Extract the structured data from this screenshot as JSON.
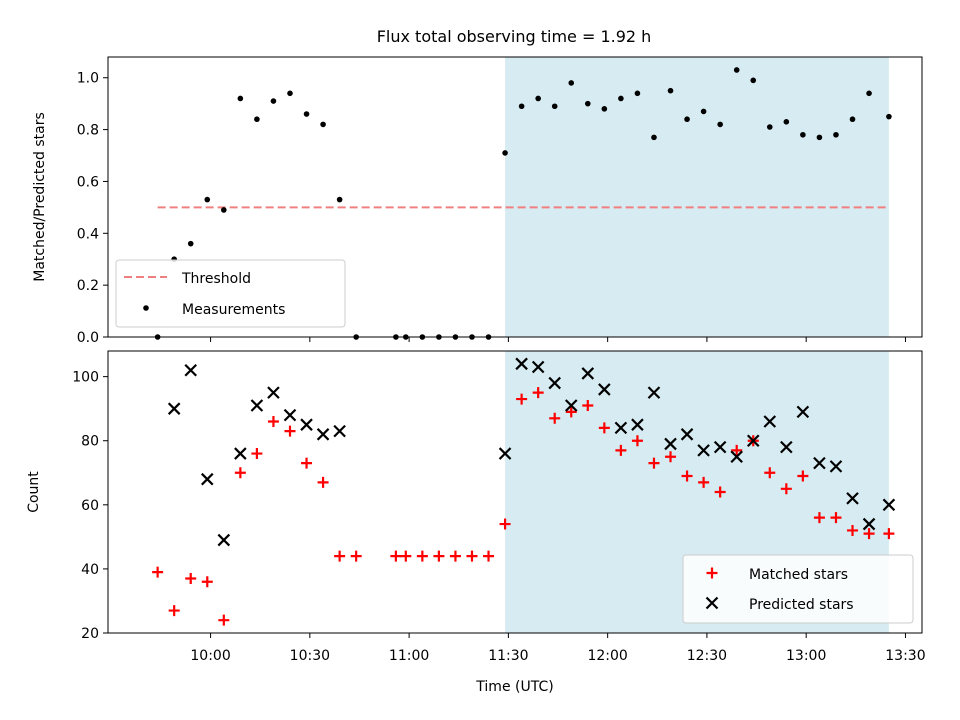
{
  "title": "Flux total observing time = 1.92 h",
  "colors": {
    "shade": "#add8e6",
    "threshold": "#f08080",
    "matched": "#ff0000",
    "predicted": "#000000",
    "points": "#000000"
  },
  "chart_data": [
    {
      "type": "scatter",
      "title": "Flux total observing time = 1.92 h",
      "xlabel": "",
      "ylabel": "Matched/Predicted stars",
      "xlim": [
        "09:29",
        "13:35"
      ],
      "ylim": [
        0.0,
        1.08
      ],
      "yticks": [
        "0.0",
        "0.2",
        "0.4",
        "0.6",
        "0.8",
        "1.0"
      ],
      "shaded_region": {
        "x": [
          "11:29",
          "13:25"
        ]
      },
      "legend": {
        "placement": "lower-left",
        "entries": [
          "Threshold",
          "Measurements"
        ]
      },
      "threshold": {
        "name": "Threshold",
        "x": [
          "09:44",
          "13:25"
        ],
        "y": 0.5
      },
      "series": [
        {
          "name": "Measurements",
          "x": [
            "09:44",
            "09:49",
            "09:54",
            "09:59",
            "10:04",
            "10:09",
            "10:14",
            "10:19",
            "10:24",
            "10:29",
            "10:34",
            "10:39",
            "10:44",
            "10:56",
            "10:59",
            "11:04",
            "11:09",
            "11:14",
            "11:19",
            "11:24",
            "11:29",
            "11:34",
            "11:39",
            "11:44",
            "11:49",
            "11:54",
            "11:59",
            "12:04",
            "12:09",
            "12:14",
            "12:19",
            "12:24",
            "12:29",
            "12:34",
            "12:39",
            "12:44",
            "12:49",
            "12:54",
            "12:59",
            "13:04",
            "13:09",
            "13:14",
            "13:19",
            "13:25"
          ],
          "y": [
            0.0,
            0.3,
            0.36,
            0.53,
            0.49,
            0.92,
            0.84,
            0.91,
            0.94,
            0.86,
            0.82,
            0.53,
            0.0,
            0.0,
            0.0,
            0.0,
            0.0,
            0.0,
            0.0,
            0.0,
            0.71,
            0.89,
            0.92,
            0.89,
            0.98,
            0.9,
            0.88,
            0.92,
            0.94,
            0.77,
            0.95,
            0.84,
            0.87,
            0.82,
            1.03,
            0.99,
            0.81,
            0.83,
            0.78,
            0.77,
            0.78,
            0.84,
            0.94,
            0.85
          ]
        }
      ]
    },
    {
      "type": "scatter",
      "xlabel": "Time (UTC)",
      "ylabel": "Count",
      "xlim": [
        "09:29",
        "13:35"
      ],
      "ylim": [
        20,
        108
      ],
      "xticks": [
        "10:00",
        "10:30",
        "11:00",
        "11:30",
        "12:00",
        "12:30",
        "13:00",
        "13:30"
      ],
      "yticks": [
        "20",
        "40",
        "60",
        "80",
        "100"
      ],
      "shaded_region": {
        "x": [
          "11:29",
          "13:25"
        ]
      },
      "legend": {
        "placement": "lower-right",
        "entries": [
          "Matched stars",
          "Predicted stars"
        ]
      },
      "series": [
        {
          "name": "Matched stars",
          "marker": "plus",
          "x": [
            "09:44",
            "09:49",
            "09:54",
            "09:59",
            "10:04",
            "10:09",
            "10:14",
            "10:19",
            "10:24",
            "10:29",
            "10:34",
            "10:39",
            "10:44",
            "10:56",
            "10:59",
            "11:04",
            "11:09",
            "11:14",
            "11:19",
            "11:24",
            "11:29",
            "11:34",
            "11:39",
            "11:44",
            "11:49",
            "11:54",
            "11:59",
            "12:04",
            "12:09",
            "12:14",
            "12:19",
            "12:24",
            "12:29",
            "12:34",
            "12:39",
            "12:44",
            "12:49",
            "12:54",
            "12:59",
            "13:04",
            "13:09",
            "13:14",
            "13:19",
            "13:25"
          ],
          "y": [
            39,
            27,
            37,
            36,
            24,
            70,
            76,
            86,
            83,
            73,
            67,
            44,
            44,
            44,
            44,
            44,
            44,
            44,
            44,
            44,
            54,
            93,
            95,
            87,
            89,
            91,
            84,
            77,
            80,
            73,
            75,
            69,
            67,
            64,
            77,
            80,
            70,
            65,
            69,
            56,
            56,
            52,
            51,
            51
          ]
        },
        {
          "name": "Predicted stars",
          "marker": "x",
          "x": [
            "09:49",
            "09:54",
            "09:59",
            "10:04",
            "10:09",
            "10:14",
            "10:19",
            "10:24",
            "10:29",
            "10:34",
            "10:39",
            "11:29",
            "11:34",
            "11:39",
            "11:44",
            "11:49",
            "11:54",
            "11:59",
            "12:04",
            "12:09",
            "12:14",
            "12:19",
            "12:24",
            "12:29",
            "12:34",
            "12:39",
            "12:44",
            "12:49",
            "12:54",
            "12:59",
            "13:04",
            "13:09",
            "13:14",
            "13:19",
            "13:25"
          ],
          "y": [
            90,
            102,
            68,
            49,
            76,
            91,
            95,
            88,
            85,
            82,
            83,
            76,
            104,
            103,
            98,
            91,
            101,
            96,
            84,
            85,
            95,
            79,
            82,
            77,
            78,
            75,
            80,
            86,
            78,
            89,
            73,
            72,
            62,
            54,
            60
          ]
        }
      ]
    }
  ]
}
